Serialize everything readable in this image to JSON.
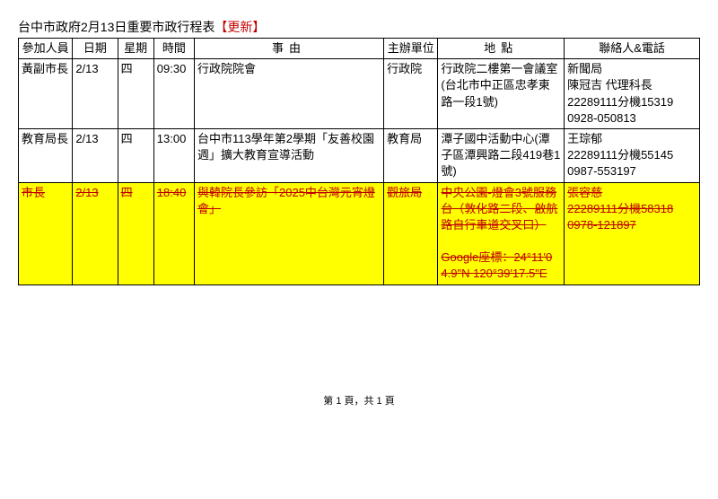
{
  "title": {
    "main": "台中市政府2月13日重要市政行程表",
    "update": "【更新】"
  },
  "headers": {
    "person": "參加人員",
    "date": "日期",
    "day": "星期",
    "time": "時間",
    "event": "事由",
    "org": "主辦單位",
    "place": "地點",
    "contact": "聯絡人&電話"
  },
  "rows": [
    {
      "person": "黃副市長",
      "date": "2/13",
      "day": "四",
      "time": "09:30",
      "event": "行政院院會",
      "org": "行政院",
      "place": "行政院二樓第一會議室(台北市中正區忠孝東路一段1號)",
      "contact": "新聞局\n陳冠吉 代理科長\n22289111分機15319\n0928-050813"
    },
    {
      "person": "教育局長",
      "date": "2/13",
      "day": "四",
      "time": "13:00",
      "event": "台中市113學年第2學期「友善校園週」擴大教育宣導活動",
      "org": "教育局",
      "place": "潭子國中活動中心(潭子區潭興路二段419巷1號)",
      "contact": "王琮郁\n22289111分機55145\n0987-553197"
    },
    {
      "highlight": true,
      "strike": true,
      "person": "市長",
      "date": "2/13",
      "day": "四",
      "time": "18:40",
      "event": "與韓院長參訪「2025中台灣元宵燈會」",
      "org": "觀旅局",
      "place": "中央公園-燈會3號服務台（敦化路二段、啟航路自行車道交叉口）\n\nGoogle座標：24°11'04.9\"N 120°39'17.5\"E",
      "contact": "張容慈\n22289111分機58318\n0978-121897"
    }
  ],
  "footer": "第 1 頁，共 1 頁"
}
